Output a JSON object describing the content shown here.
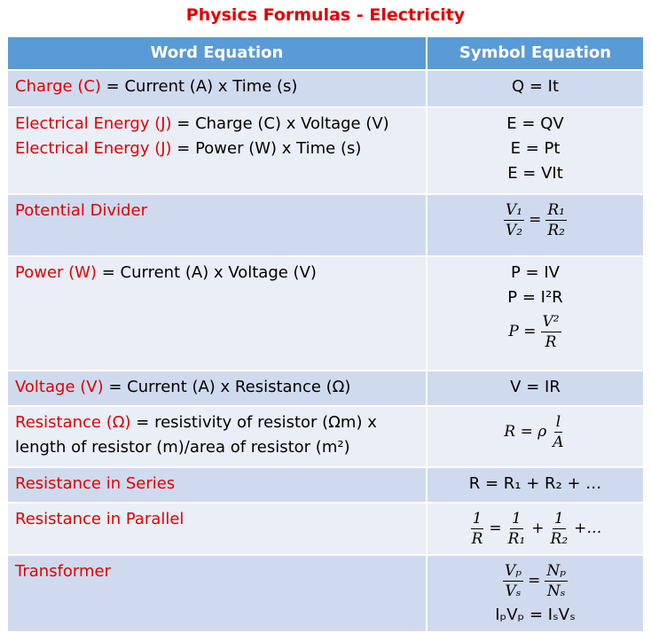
{
  "title": "Physics Formulas - Electricity",
  "table": {
    "headers": [
      "Word Equation",
      "Symbol Equation"
    ],
    "rows": [
      {
        "word": [
          {
            "term": "Charge (C)",
            "rest": "= Current (A) x Time (s)"
          }
        ],
        "symbol": [
          "Q = It"
        ]
      },
      {
        "word": [
          {
            "term": "Electrical Energy (J)",
            "rest": "= Charge (C) x Voltage (V)"
          },
          {
            "term": "Electrical Energy (J)",
            "rest": "= Power (W) x Time (s)"
          }
        ],
        "symbol": [
          "E = QV",
          "E = Pt",
          "E = VIt"
        ]
      },
      {
        "word": [
          {
            "term": "Potential Divider"
          }
        ],
        "symbol": [
          {
            "parts": [
              {
                "num": "V₁",
                "den": "V₂"
              },
              "=",
              {
                "num": "R₁",
                "den": "R₂"
              }
            ]
          }
        ]
      },
      {
        "word": [
          {
            "term": "Power (W)",
            "rest": "= Current (A) x Voltage (V)"
          }
        ],
        "symbol": [
          "P = IV",
          "P = I²R",
          {
            "parts": [
              "P =",
              {
                "num": "V²",
                "den": "R"
              }
            ]
          }
        ]
      },
      {
        "word": [
          {
            "term": "Voltage (V)",
            "rest": "= Current (A) x Resistance (Ω)"
          }
        ],
        "symbol": [
          "V = IR"
        ]
      },
      {
        "word": [
          {
            "term": "Resistance (Ω)",
            "rest": "= resistivity of resistor (Ωm) x length of resistor (m)/area of resistor (m²)"
          }
        ],
        "symbol": [
          {
            "parts": [
              "R = ρ",
              {
                "num": "l",
                "den": "A"
              }
            ]
          }
        ]
      },
      {
        "word": [
          {
            "term": "Resistance in Series"
          }
        ],
        "symbol": [
          "R = R₁ + R₂ + …"
        ]
      },
      {
        "word": [
          {
            "term": "Resistance in Parallel"
          }
        ],
        "symbol": [
          {
            "parts": [
              {
                "num": "1",
                "den": "R"
              },
              "=",
              {
                "num": "1",
                "den": "R₁"
              },
              "+",
              {
                "num": "1",
                "den": "R₂"
              },
              "+…"
            ]
          }
        ]
      },
      {
        "word": [
          {
            "term": "Transformer"
          }
        ],
        "symbol": [
          {
            "parts": [
              {
                "num": "Vₚ",
                "den": "Vₛ"
              },
              "=",
              {
                "num": "Nₚ",
                "den": "Nₛ"
              }
            ]
          },
          "IₚVₚ = IₛVₛ"
        ]
      }
    ]
  }
}
